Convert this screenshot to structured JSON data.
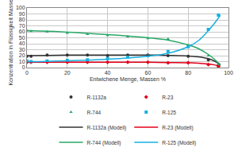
{
  "chart_data": {
    "type": "scatter",
    "x_label": "Entwichene Menge, Massen %",
    "y_label": "Konzentration in Flüssigkeit Massen %",
    "xlim": [
      0,
      100
    ],
    "xticks": [
      0,
      20,
      40,
      60,
      80,
      100
    ],
    "ylim": [
      0,
      100
    ],
    "yticks": [
      0,
      10,
      20,
      30,
      40,
      50,
      60,
      70,
      80,
      90,
      100
    ],
    "grid": true,
    "legend": "bottom",
    "series": [
      {
        "name": "R-1132a",
        "type": "scatter",
        "marker": "circle",
        "color": "#333333",
        "x": [
          0,
          2,
          10,
          20,
          30,
          40,
          50,
          60,
          70,
          80,
          90,
          95
        ],
        "values": [
          19,
          19,
          21,
          21,
          21,
          20,
          21,
          21,
          20,
          19,
          13,
          4
        ]
      },
      {
        "name": "R-23",
        "type": "scatter",
        "marker": "diamond",
        "color": "#e2001a",
        "x": [
          0,
          2,
          10,
          20,
          30,
          40,
          50,
          60,
          70,
          80,
          90,
          95
        ],
        "values": [
          9,
          9,
          9,
          9,
          9,
          9,
          9,
          9,
          8,
          8,
          5,
          2
        ]
      },
      {
        "name": "R-744",
        "type": "scatter",
        "marker": "triangle-up",
        "color": "#2aa86a",
        "x": [
          0,
          2,
          10,
          20,
          30,
          40,
          50,
          60,
          70,
          80,
          90,
          95
        ],
        "values": [
          62,
          61,
          60,
          58,
          56,
          54,
          52,
          49,
          48,
          37,
          20,
          5
        ]
      },
      {
        "name": "R-125",
        "type": "scatter",
        "marker": "square",
        "color": "#1ab0e0",
        "x": [
          0,
          2,
          10,
          20,
          30,
          40,
          50,
          60,
          70,
          80,
          90,
          95
        ],
        "values": [
          11,
          10,
          11,
          12,
          13,
          15,
          18,
          20,
          27,
          35,
          64,
          88
        ]
      },
      {
        "name": "R-1132a (Modell)",
        "type": "line",
        "line_style": "solid",
        "color": "#333333",
        "x": [
          0,
          10,
          20,
          30,
          40,
          50,
          60,
          70,
          80,
          85,
          90,
          93,
          96
        ],
        "values": [
          20,
          20.5,
          21,
          21,
          21,
          21,
          21,
          20.5,
          19.5,
          18,
          15,
          11,
          5
        ]
      },
      {
        "name": "R-23 (Modell)",
        "type": "line",
        "line_style": "solid",
        "color": "#e2001a",
        "x": [
          0,
          10,
          20,
          30,
          40,
          50,
          60,
          70,
          80,
          85,
          90,
          93,
          96
        ],
        "values": [
          9,
          9,
          9,
          9,
          9,
          9,
          9,
          8.5,
          8,
          7.5,
          6,
          4.5,
          2
        ]
      },
      {
        "name": "R-744 (Modell)",
        "type": "line",
        "line_style": "solid",
        "color": "#2aa86a",
        "x": [
          0,
          10,
          20,
          30,
          40,
          50,
          60,
          70,
          80,
          85,
          90,
          93,
          96
        ],
        "values": [
          62,
          61,
          59.5,
          57.5,
          55.5,
          53,
          50,
          46,
          38,
          32,
          22,
          14,
          4
        ]
      },
      {
        "name": "R-125 (Modell)",
        "type": "line",
        "line_style": "solid",
        "color": "#1ab0e0",
        "x": [
          0,
          10,
          20,
          30,
          40,
          50,
          60,
          70,
          80,
          85,
          90,
          93,
          96
        ],
        "values": [
          10,
          10.5,
          11.5,
          12.5,
          14,
          16,
          19,
          24,
          35,
          45,
          62,
          74,
          88
        ]
      }
    ]
  }
}
